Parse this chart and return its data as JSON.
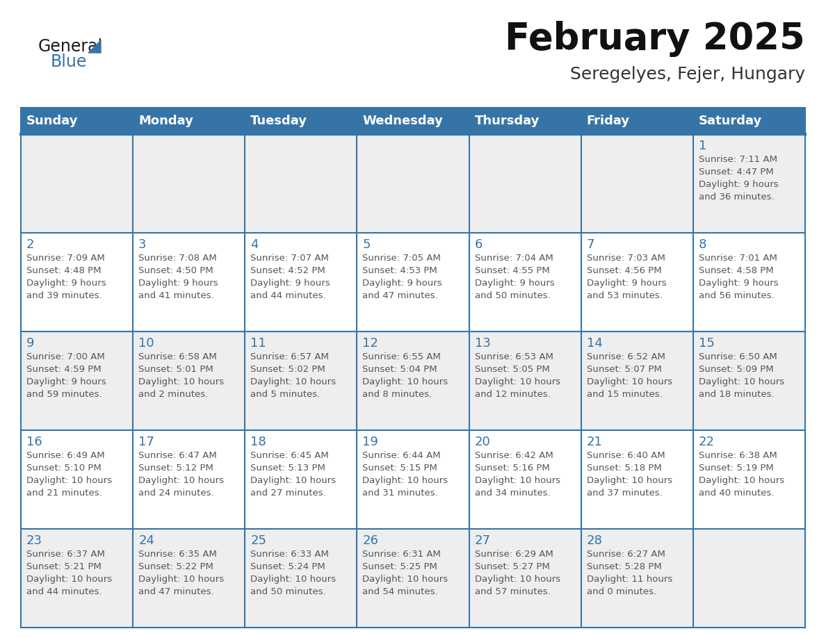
{
  "title": "February 2025",
  "subtitle": "Seregelyes, Fejer, Hungary",
  "header_bg": "#3674a8",
  "header_text_color": "#ffffff",
  "cell_bg": "#ffffff",
  "cell_alt_bg": "#eeeeee",
  "border_color": "#3674a8",
  "day_number_color": "#3674a8",
  "text_color": "#555555",
  "days_of_week": [
    "Sunday",
    "Monday",
    "Tuesday",
    "Wednesday",
    "Thursday",
    "Friday",
    "Saturday"
  ],
  "weeks": [
    [
      {
        "day": null,
        "info": null
      },
      {
        "day": null,
        "info": null
      },
      {
        "day": null,
        "info": null
      },
      {
        "day": null,
        "info": null
      },
      {
        "day": null,
        "info": null
      },
      {
        "day": null,
        "info": null
      },
      {
        "day": 1,
        "info": "Sunrise: 7:11 AM\nSunset: 4:47 PM\nDaylight: 9 hours\nand 36 minutes."
      }
    ],
    [
      {
        "day": 2,
        "info": "Sunrise: 7:09 AM\nSunset: 4:48 PM\nDaylight: 9 hours\nand 39 minutes."
      },
      {
        "day": 3,
        "info": "Sunrise: 7:08 AM\nSunset: 4:50 PM\nDaylight: 9 hours\nand 41 minutes."
      },
      {
        "day": 4,
        "info": "Sunrise: 7:07 AM\nSunset: 4:52 PM\nDaylight: 9 hours\nand 44 minutes."
      },
      {
        "day": 5,
        "info": "Sunrise: 7:05 AM\nSunset: 4:53 PM\nDaylight: 9 hours\nand 47 minutes."
      },
      {
        "day": 6,
        "info": "Sunrise: 7:04 AM\nSunset: 4:55 PM\nDaylight: 9 hours\nand 50 minutes."
      },
      {
        "day": 7,
        "info": "Sunrise: 7:03 AM\nSunset: 4:56 PM\nDaylight: 9 hours\nand 53 minutes."
      },
      {
        "day": 8,
        "info": "Sunrise: 7:01 AM\nSunset: 4:58 PM\nDaylight: 9 hours\nand 56 minutes."
      }
    ],
    [
      {
        "day": 9,
        "info": "Sunrise: 7:00 AM\nSunset: 4:59 PM\nDaylight: 9 hours\nand 59 minutes."
      },
      {
        "day": 10,
        "info": "Sunrise: 6:58 AM\nSunset: 5:01 PM\nDaylight: 10 hours\nand 2 minutes."
      },
      {
        "day": 11,
        "info": "Sunrise: 6:57 AM\nSunset: 5:02 PM\nDaylight: 10 hours\nand 5 minutes."
      },
      {
        "day": 12,
        "info": "Sunrise: 6:55 AM\nSunset: 5:04 PM\nDaylight: 10 hours\nand 8 minutes."
      },
      {
        "day": 13,
        "info": "Sunrise: 6:53 AM\nSunset: 5:05 PM\nDaylight: 10 hours\nand 12 minutes."
      },
      {
        "day": 14,
        "info": "Sunrise: 6:52 AM\nSunset: 5:07 PM\nDaylight: 10 hours\nand 15 minutes."
      },
      {
        "day": 15,
        "info": "Sunrise: 6:50 AM\nSunset: 5:09 PM\nDaylight: 10 hours\nand 18 minutes."
      }
    ],
    [
      {
        "day": 16,
        "info": "Sunrise: 6:49 AM\nSunset: 5:10 PM\nDaylight: 10 hours\nand 21 minutes."
      },
      {
        "day": 17,
        "info": "Sunrise: 6:47 AM\nSunset: 5:12 PM\nDaylight: 10 hours\nand 24 minutes."
      },
      {
        "day": 18,
        "info": "Sunrise: 6:45 AM\nSunset: 5:13 PM\nDaylight: 10 hours\nand 27 minutes."
      },
      {
        "day": 19,
        "info": "Sunrise: 6:44 AM\nSunset: 5:15 PM\nDaylight: 10 hours\nand 31 minutes."
      },
      {
        "day": 20,
        "info": "Sunrise: 6:42 AM\nSunset: 5:16 PM\nDaylight: 10 hours\nand 34 minutes."
      },
      {
        "day": 21,
        "info": "Sunrise: 6:40 AM\nSunset: 5:18 PM\nDaylight: 10 hours\nand 37 minutes."
      },
      {
        "day": 22,
        "info": "Sunrise: 6:38 AM\nSunset: 5:19 PM\nDaylight: 10 hours\nand 40 minutes."
      }
    ],
    [
      {
        "day": 23,
        "info": "Sunrise: 6:37 AM\nSunset: 5:21 PM\nDaylight: 10 hours\nand 44 minutes."
      },
      {
        "day": 24,
        "info": "Sunrise: 6:35 AM\nSunset: 5:22 PM\nDaylight: 10 hours\nand 47 minutes."
      },
      {
        "day": 25,
        "info": "Sunrise: 6:33 AM\nSunset: 5:24 PM\nDaylight: 10 hours\nand 50 minutes."
      },
      {
        "day": 26,
        "info": "Sunrise: 6:31 AM\nSunset: 5:25 PM\nDaylight: 10 hours\nand 54 minutes."
      },
      {
        "day": 27,
        "info": "Sunrise: 6:29 AM\nSunset: 5:27 PM\nDaylight: 10 hours\nand 57 minutes."
      },
      {
        "day": 28,
        "info": "Sunrise: 6:27 AM\nSunset: 5:28 PM\nDaylight: 11 hours\nand 0 minutes."
      },
      {
        "day": null,
        "info": null
      }
    ]
  ],
  "logo_general_color": "#1a1a1a",
  "logo_blue_color": "#3674a8",
  "title_fontsize": 38,
  "subtitle_fontsize": 18,
  "header_fontsize": 13,
  "day_num_fontsize": 13,
  "info_fontsize": 9.5,
  "logo_fontsize": 17
}
